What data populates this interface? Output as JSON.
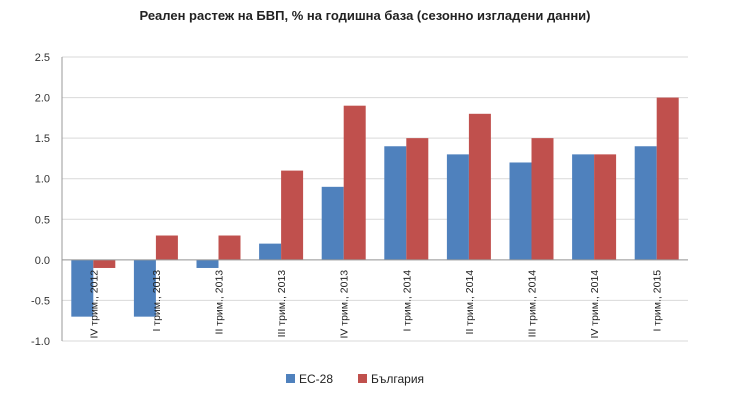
{
  "chart_data": {
    "type": "bar",
    "title": "Реален растеж на БВП, % на годишна база (сезонно изгладени данни)",
    "xlabel": "",
    "ylabel": "",
    "categories": [
      "IV трим., 2012",
      "I трим., 2013",
      "II трим., 2013",
      "III трим., 2013",
      "IV трим., 2013",
      "I трим., 2014",
      "II трим., 2014",
      "III трим., 2014",
      "IV трим., 2014",
      "I трим., 2015"
    ],
    "series": [
      {
        "name": "ЕС-28",
        "color": "#4F81BD",
        "values": [
          -0.7,
          -0.7,
          -0.1,
          0.2,
          0.9,
          1.4,
          1.3,
          1.2,
          1.3,
          1.4
        ]
      },
      {
        "name": "България",
        "color": "#C0504D",
        "values": [
          -0.1,
          0.3,
          0.3,
          1.1,
          1.9,
          1.5,
          1.8,
          1.5,
          1.3,
          2.0
        ]
      }
    ],
    "ylim": [
      -1.0,
      2.5
    ],
    "yticks": [
      "-1.0",
      "-0.5",
      "0.0",
      "0.5",
      "1.0",
      "1.5",
      "2.0",
      "2.5"
    ],
    "grid": true,
    "legend_position": "bottom"
  }
}
